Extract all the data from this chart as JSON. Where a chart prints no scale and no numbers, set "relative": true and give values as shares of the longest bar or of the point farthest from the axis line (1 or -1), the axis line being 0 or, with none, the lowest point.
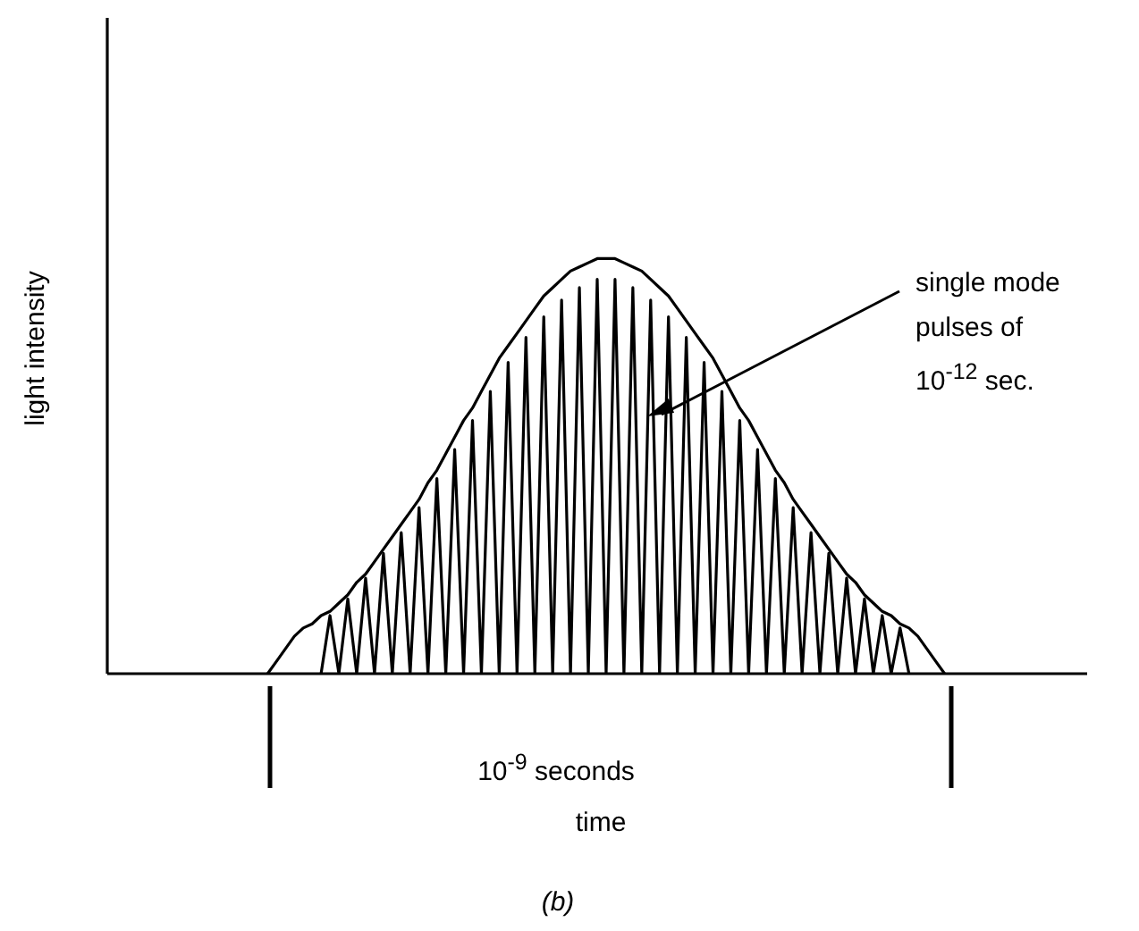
{
  "chart_data": {
    "type": "line",
    "relative": true,
    "xlabel": "time",
    "ylabel": "light intensity",
    "marker": "none",
    "line_style": "solid",
    "annotations": [
      "single mode pulses of 10$^{-12}$ sec.",
      "10$^{-9}$ seconds",
      "(b)"
    ],
    "categories": [
      null,
      null,
      null,
      null,
      null,
      null,
      null,
      null,
      null,
      null,
      null,
      null,
      null,
      null,
      null,
      null,
      null,
      null,
      null,
      null,
      null,
      null,
      null,
      null,
      null,
      null,
      null,
      null,
      null,
      null,
      null,
      null,
      null,
      null,
      null,
      null,
      null,
      null,
      null,
      null,
      null,
      null,
      null,
      null,
      null,
      null,
      null,
      null,
      null,
      null,
      null,
      null,
      null,
      null,
      null,
      null,
      null,
      null,
      null,
      null,
      null,
      null,
      null,
      null,
      null,
      null,
      null,
      null,
      null,
      null,
      null,
      null,
      null,
      null,
      null,
      null,
      null,
      null,
      null,
      null,
      null,
      null,
      null,
      null,
      null,
      null,
      null,
      null,
      null,
      null,
      null,
      null,
      null,
      null,
      null,
      null,
      null,
      null,
      null,
      null,
      null,
      null,
      null,
      null,
      null,
      null,
      null,
      null,
      null,
      null,
      null
    ],
    "series": [
      {
        "color": "#000000",
        "values": [
          null,
          null,
          null,
          null,
          null,
          null,
          null,
          null,
          null,
          null,
          null,
          null,
          null,
          null,
          null,
          null,
          null,
          null,
          0,
          0.03,
          0.06,
          0.09,
          0.11,
          0.12,
          0.14,
          0.15,
          0.17,
          0.19,
          0.22,
          0.24,
          0.27,
          0.3,
          0.33,
          0.36,
          0.39,
          0.42,
          0.46,
          0.49,
          0.53,
          0.57,
          0.61,
          0.64,
          0.68,
          0.72,
          0.76,
          0.79,
          0.82,
          0.85,
          0.88,
          0.91,
          0.93,
          0.95,
          0.97,
          0.98,
          0.99,
          1,
          1,
          1,
          0.99,
          0.98,
          0.97,
          0.95,
          0.93,
          0.91,
          0.88,
          0.85,
          0.82,
          0.79,
          0.76,
          0.72,
          0.68,
          0.64,
          0.61,
          0.57,
          0.53,
          0.49,
          0.46,
          0.42,
          0.39,
          0.36,
          0.33,
          0.3,
          0.27,
          0.24,
          0.22,
          0.19,
          0.17,
          0.15,
          0.14,
          0.12,
          0.11,
          0.09,
          0.06,
          0.03,
          0,
          null,
          null,
          null,
          null,
          null,
          null,
          null,
          null,
          null,
          null,
          null,
          null,
          null,
          null,
          null,
          null
        ]
      },
      {
        "color": "#000000",
        "values": [
          null,
          null,
          null,
          null,
          null,
          null,
          null,
          null,
          null,
          null,
          null,
          null,
          null,
          null,
          null,
          null,
          null,
          null,
          null,
          null,
          null,
          null,
          null,
          null,
          0,
          0.14,
          0,
          0.18,
          0,
          0.23,
          0,
          0.29,
          0,
          0.34,
          0,
          0.4,
          0,
          0.47,
          0,
          0.54,
          0,
          0.61,
          0,
          0.68,
          0,
          0.75,
          0,
          0.81,
          0,
          0.86,
          0,
          0.9,
          0,
          0.93,
          0,
          0.95,
          0,
          0.95,
          0,
          0.93,
          0,
          0.9,
          0,
          0.86,
          0,
          0.81,
          0,
          0.75,
          0,
          0.68,
          0,
          0.61,
          0,
          0.54,
          0,
          0.47,
          0,
          0.4,
          0,
          0.34,
          0,
          0.29,
          0,
          0.23,
          0,
          0.18,
          0,
          0.14,
          0,
          0.11,
          0,
          null,
          null,
          null,
          null,
          null,
          null,
          null,
          null,
          null,
          null,
          null,
          null,
          null,
          null,
          null,
          null,
          null,
          null,
          null,
          null
        ]
      }
    ]
  }
}
